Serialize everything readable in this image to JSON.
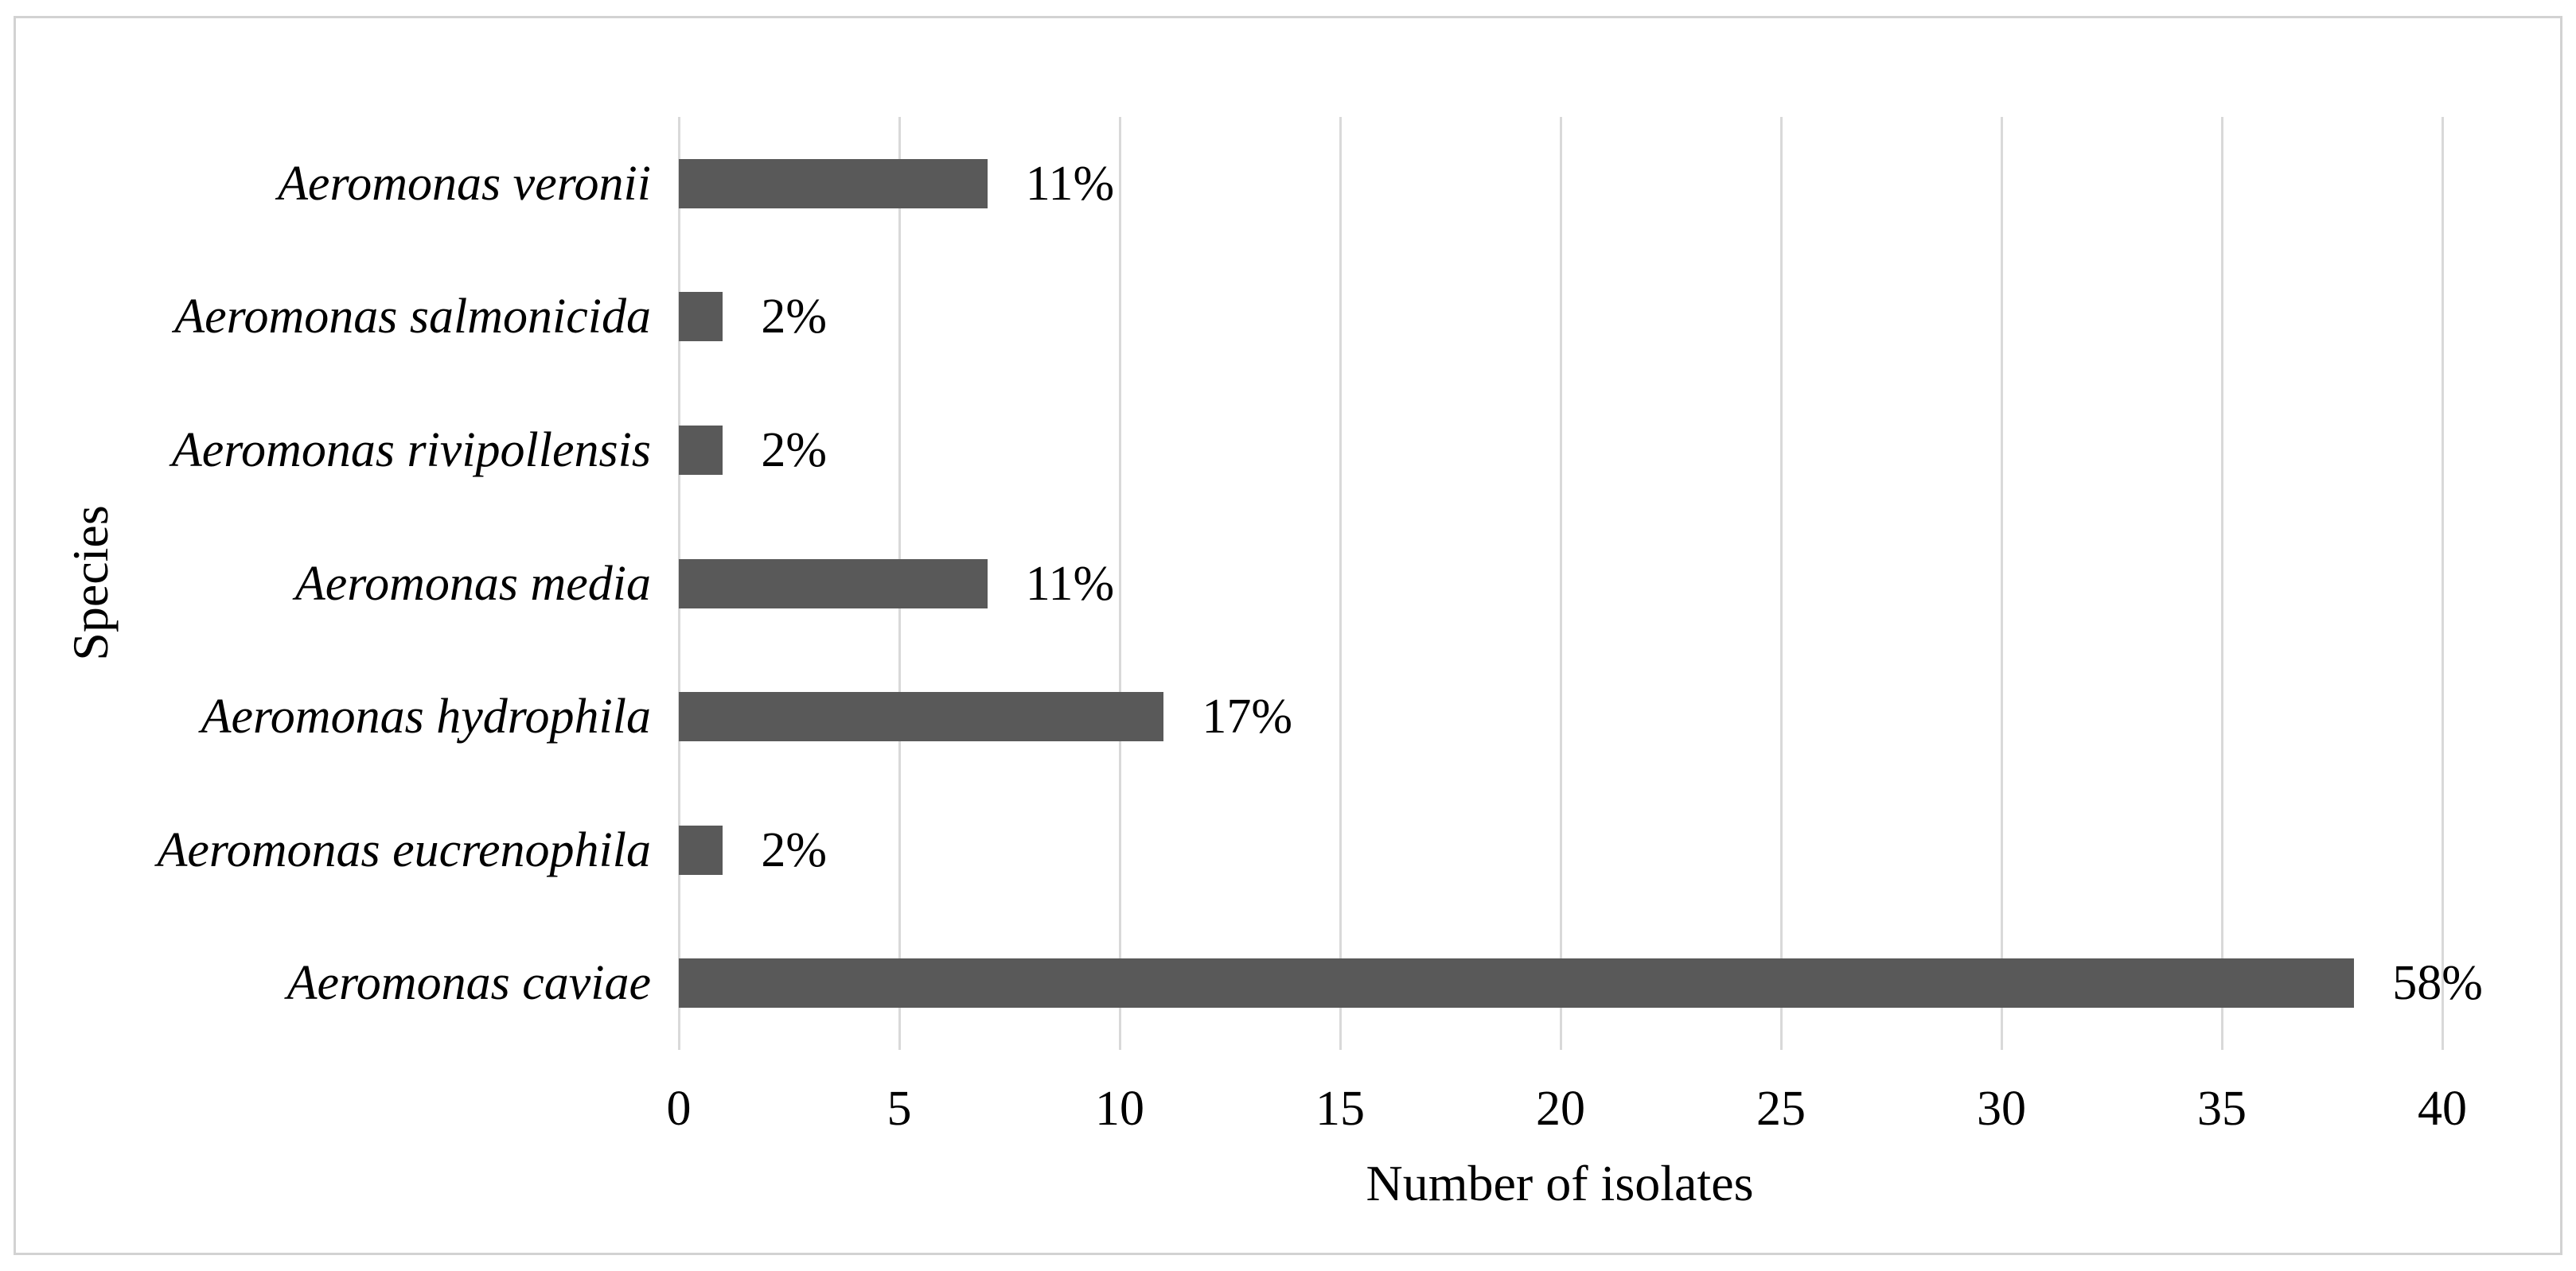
{
  "chart_data": {
    "type": "bar",
    "orientation": "horizontal",
    "title": "",
    "xlabel": "Number of isolates",
    "ylabel": "Species",
    "categories": [
      "Aeromonas veronii",
      "Aeromonas salmonicida",
      "Aeromonas rivipollensis",
      "Aeromonas media",
      "Aeromonas hydrophila",
      "Aeromonas eucrenophila",
      "Aeromonas caviae"
    ],
    "values": [
      7,
      1,
      1,
      7,
      11,
      1,
      38
    ],
    "bar_labels": [
      "11%",
      "2%",
      "2%",
      "11%",
      "17%",
      "2%",
      "58%"
    ],
    "xlim": [
      0,
      40
    ],
    "x_ticks": [
      0,
      5,
      10,
      15,
      20,
      25,
      30,
      35,
      40
    ],
    "grid": "vertical-gridlines-on",
    "legend": "none",
    "bar_color": "#595959",
    "gridline_color": "#d9d9d9",
    "frame_border_color": "#d2d2d2",
    "text_color": "#000000",
    "background_color": "#ffffff"
  }
}
